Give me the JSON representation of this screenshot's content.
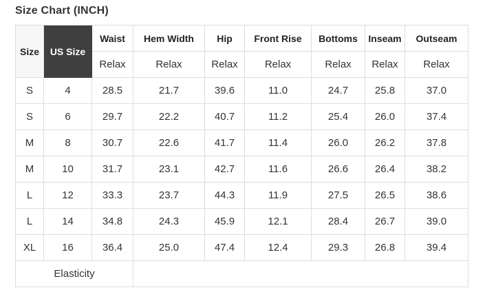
{
  "page": {
    "title": "Size Chart (INCH)"
  },
  "table": {
    "corner_headers": {
      "size": "Size",
      "us_size": "US Size"
    },
    "measure_headers": [
      "Waist",
      "Hem Width",
      "Hip",
      "Front Rise",
      "Bottoms",
      "Inseam",
      "Outseam"
    ],
    "fit_row": [
      "Relax",
      "Relax",
      "Relax",
      "Relax",
      "Relax",
      "Relax",
      "Relax"
    ],
    "rows": [
      [
        "S",
        "4",
        "28.5",
        "21.7",
        "39.6",
        "11.0",
        "24.7",
        "25.8",
        "37.0"
      ],
      [
        "S",
        "6",
        "29.7",
        "22.2",
        "40.7",
        "11.2",
        "25.4",
        "26.0",
        "37.4"
      ],
      [
        "M",
        "8",
        "30.7",
        "22.6",
        "41.7",
        "11.4",
        "26.0",
        "26.2",
        "37.8"
      ],
      [
        "M",
        "10",
        "31.7",
        "23.1",
        "42.7",
        "11.6",
        "26.6",
        "26.4",
        "38.2"
      ],
      [
        "L",
        "12",
        "33.3",
        "23.7",
        "44.3",
        "11.9",
        "27.5",
        "26.5",
        "38.6"
      ],
      [
        "L",
        "14",
        "34.8",
        "24.3",
        "45.9",
        "12.1",
        "28.4",
        "26.7",
        "39.0"
      ],
      [
        "XL",
        "16",
        "36.4",
        "25.0",
        "47.4",
        "12.4",
        "29.3",
        "26.8",
        "39.4"
      ]
    ],
    "footer": {
      "label": "Elasticity",
      "value": ""
    }
  },
  "colors": {
    "us_size_header_bg": "#3f3f3f",
    "us_size_header_text": "#ffffff",
    "size_header_bg": "#f7f7f7",
    "border": "#dddddd",
    "text": "#333333"
  }
}
